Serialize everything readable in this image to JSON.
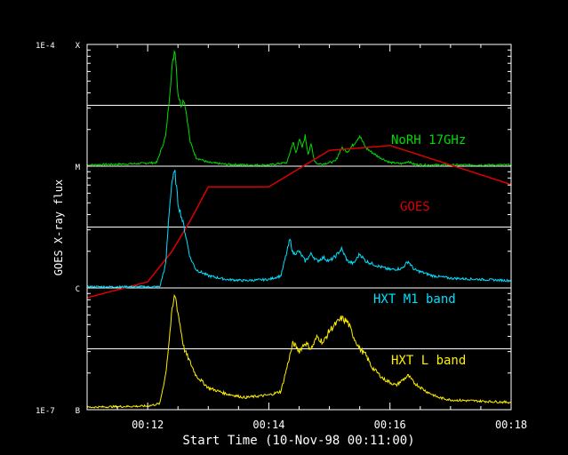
{
  "chart_data": {
    "type": "line",
    "xlabel": "Start Time (10-Nov-98 00:11:00)",
    "ylabel": "GOES X-ray flux",
    "x_tick_labels": [
      "00:12",
      "00:14",
      "00:16",
      "00:18"
    ],
    "x_ticks_min": [
      12,
      14,
      16,
      18
    ],
    "xlim_min": [
      11,
      18
    ],
    "y_tick_labels": [
      {
        "text": "1E-4",
        "exp": -4
      },
      {
        "text": "X",
        "exp": -4
      },
      {
        "text": "M",
        "exp": -5
      },
      {
        "text": "C",
        "exp": -6
      },
      {
        "text": "1E-7",
        "exp": -7
      },
      {
        "text": "B",
        "exp": -7
      }
    ],
    "y_scale": "log",
    "ylim_log": [
      -7,
      -4
    ],
    "grid": "horizontal",
    "series": [
      {
        "name": "NoRH 17GHz",
        "color": "#00dd00",
        "panel_log_range": [
          -5,
          -4
        ],
        "x_min": [
          11.0,
          11.8,
          12.15,
          12.3,
          12.4,
          12.45,
          12.5,
          12.55,
          12.6,
          12.65,
          12.7,
          12.8,
          13.0,
          13.3,
          13.7,
          14.0,
          14.3,
          14.4,
          14.45,
          14.5,
          14.55,
          14.6,
          14.65,
          14.7,
          14.75,
          14.8,
          14.9,
          15.1,
          15.2,
          15.3,
          15.4,
          15.5,
          15.6,
          15.8,
          16.0,
          16.2,
          16.3,
          16.4,
          16.6,
          17.0,
          18.0
        ],
        "y_log": [
          -4.99,
          -4.98,
          -4.97,
          -4.75,
          -4.2,
          -4.02,
          -4.4,
          -4.5,
          -4.45,
          -4.6,
          -4.8,
          -4.93,
          -4.97,
          -4.985,
          -4.99,
          -4.99,
          -4.97,
          -4.8,
          -4.9,
          -4.77,
          -4.85,
          -4.75,
          -4.9,
          -4.82,
          -4.95,
          -4.98,
          -4.98,
          -4.96,
          -4.85,
          -4.88,
          -4.82,
          -4.75,
          -4.85,
          -4.92,
          -4.97,
          -4.98,
          -4.96,
          -4.985,
          -4.99,
          -4.99,
          -4.99
        ]
      },
      {
        "name": "GOES",
        "color": "#dd0000",
        "panel_log_range": [
          -7,
          -4
        ],
        "x_min": [
          11.0,
          12.0,
          12.4,
          12.7,
          13.0,
          14.0,
          15.0,
          16.0,
          18.0
        ],
        "y_log": [
          -6.08,
          -5.95,
          -5.7,
          -5.45,
          -5.17,
          -5.17,
          -4.87,
          -4.83,
          -5.15
        ]
      },
      {
        "name": "HXT   M1 band",
        "color": "#00e0ff",
        "panel_log_range": [
          -6,
          -5
        ],
        "x_min": [
          11.0,
          12.2,
          12.3,
          12.35,
          12.4,
          12.45,
          12.5,
          12.6,
          12.7,
          12.8,
          13.0,
          13.3,
          13.6,
          14.0,
          14.2,
          14.35,
          14.4,
          14.5,
          14.6,
          14.7,
          14.8,
          14.9,
          15.0,
          15.1,
          15.2,
          15.3,
          15.4,
          15.5,
          15.6,
          15.8,
          16.0,
          16.2,
          16.3,
          16.4,
          16.7,
          17.0,
          17.5,
          18.0
        ],
        "y_log": [
          -5.99,
          -5.99,
          -5.8,
          -5.4,
          -5.12,
          -5.05,
          -5.3,
          -5.5,
          -5.75,
          -5.85,
          -5.9,
          -5.93,
          -5.94,
          -5.93,
          -5.9,
          -5.6,
          -5.72,
          -5.7,
          -5.78,
          -5.72,
          -5.78,
          -5.75,
          -5.78,
          -5.74,
          -5.68,
          -5.78,
          -5.8,
          -5.72,
          -5.78,
          -5.82,
          -5.85,
          -5.84,
          -5.78,
          -5.85,
          -5.9,
          -5.92,
          -5.93,
          -5.94
        ]
      },
      {
        "name": "HXT   L band",
        "color": "#ffee00",
        "panel_log_range": [
          -7,
          -6
        ],
        "x_min": [
          11.0,
          12.0,
          12.2,
          12.3,
          12.4,
          12.45,
          12.5,
          12.6,
          12.8,
          13.0,
          13.3,
          13.6,
          14.0,
          14.2,
          14.3,
          14.4,
          14.5,
          14.6,
          14.7,
          14.8,
          14.9,
          15.0,
          15.1,
          15.2,
          15.3,
          15.4,
          15.5,
          15.6,
          15.7,
          15.9,
          16.1,
          16.3,
          16.4,
          16.6,
          16.8,
          17.0,
          17.5,
          18.0
        ],
        "y_log": [
          -6.98,
          -6.97,
          -6.95,
          -6.7,
          -6.2,
          -6.05,
          -6.2,
          -6.5,
          -6.72,
          -6.82,
          -6.87,
          -6.9,
          -6.88,
          -6.85,
          -6.65,
          -6.45,
          -6.52,
          -6.45,
          -6.5,
          -6.4,
          -6.45,
          -6.35,
          -6.3,
          -6.25,
          -6.28,
          -6.4,
          -6.5,
          -6.55,
          -6.65,
          -6.75,
          -6.8,
          -6.72,
          -6.78,
          -6.85,
          -6.9,
          -6.92,
          -6.93,
          -6.94
        ]
      }
    ]
  }
}
